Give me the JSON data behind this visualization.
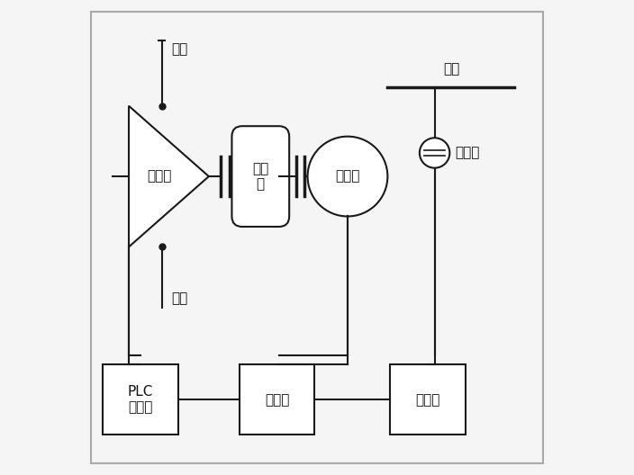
{
  "fig_bg": "#f5f5f5",
  "line_color": "#1a1a1a",
  "text_color": "#111111",
  "font_size": 11,
  "labels": {
    "jin_qi": "进汽",
    "pai_qi": "排汽",
    "dong_li_ji": "动力机",
    "jian_su_ji": "减速\n机",
    "fa_dian_ji": "发电机",
    "dian_wang": "电网",
    "bian_ya_qi": "变压器",
    "plc": "PLC\n控制柜",
    "bing_wang_gui": "并网柜",
    "lian_luo_gui": "联络柜"
  },
  "xlim": [
    0,
    10
  ],
  "ylim": [
    0,
    10
  ]
}
